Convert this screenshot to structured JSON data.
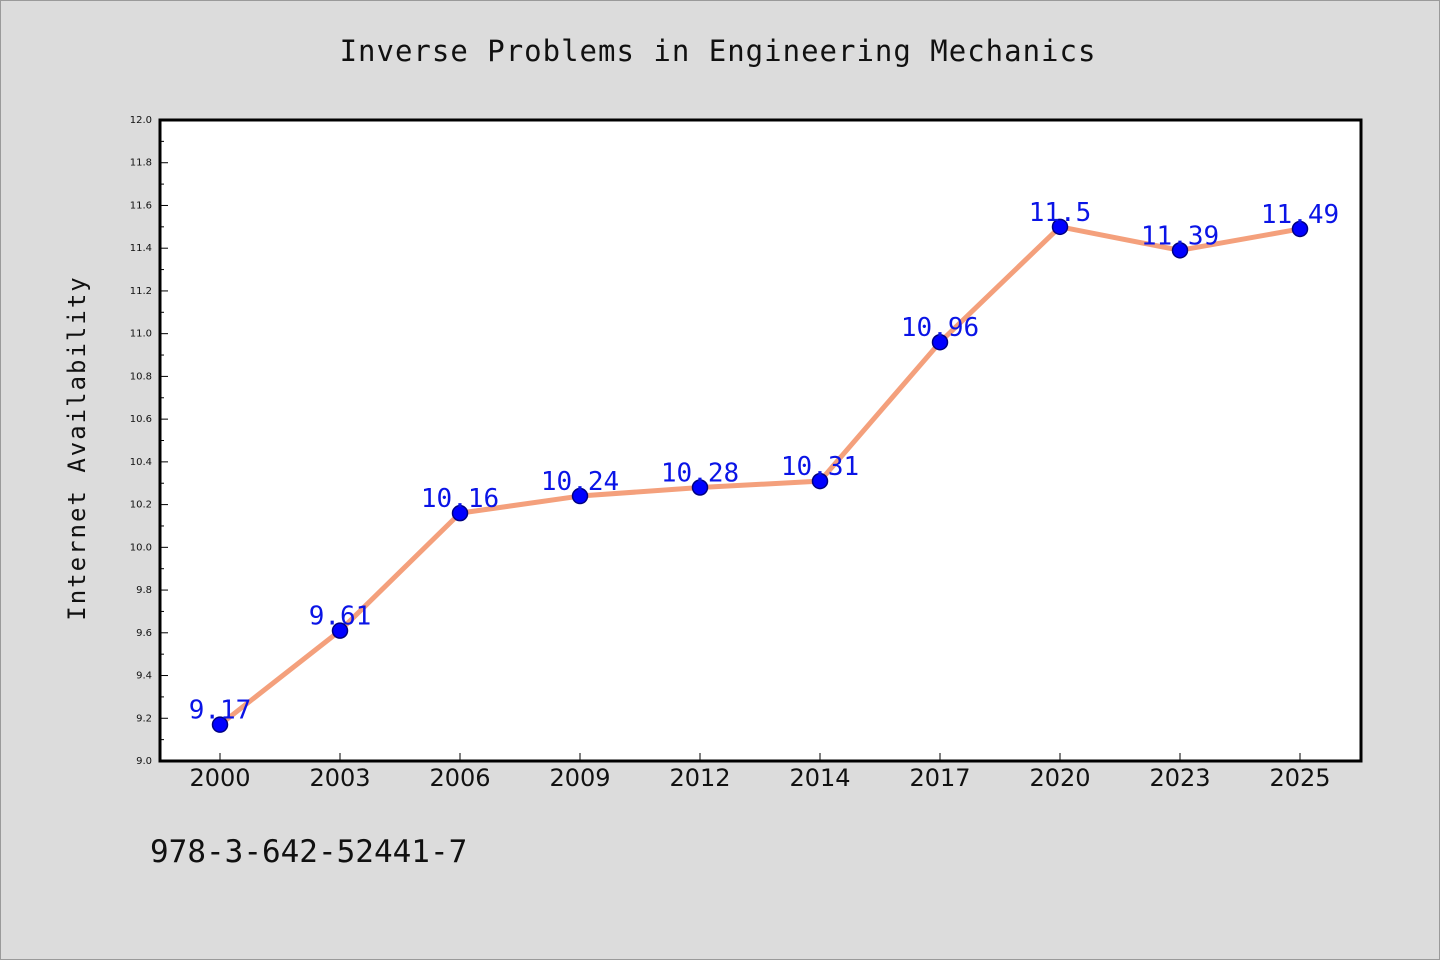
{
  "title": "Inverse Problems in Engineering Mechanics",
  "footer_text": "978-3-642-52441-7",
  "colors": {
    "line": "#f4a07c",
    "marker": "#0000ff",
    "marker_edge": "#000080",
    "label": "#0a14e6",
    "background": "#dcdcdc",
    "plot_background": "#ffffff"
  },
  "chart_data": {
    "type": "line",
    "title": "Inverse Problems in Engineering Mechanics",
    "xlabel": "",
    "ylabel": "Internet Availability",
    "categories": [
      "2000",
      "2003",
      "2006",
      "2009",
      "2012",
      "2014",
      "2017",
      "2020",
      "2023",
      "2025"
    ],
    "values": [
      9.17,
      9.61,
      10.16,
      10.24,
      10.28,
      10.31,
      10.96,
      11.5,
      11.39,
      11.49
    ],
    "data_labels": [
      "9.17",
      "9.61",
      "10.16",
      "10.24",
      "10.28",
      "10.31",
      "10.96",
      "11.5",
      "11.39",
      "11.49"
    ],
    "ylim": [
      9.0,
      12.0
    ],
    "yticks": [
      "9.0",
      "9.2",
      "9.4",
      "9.6",
      "9.8",
      "10.0",
      "10.2",
      "10.4",
      "10.6",
      "10.8",
      "11.0",
      "11.2",
      "11.4",
      "11.6",
      "11.8",
      "12.0"
    ],
    "grid": false,
    "legend": "none"
  }
}
